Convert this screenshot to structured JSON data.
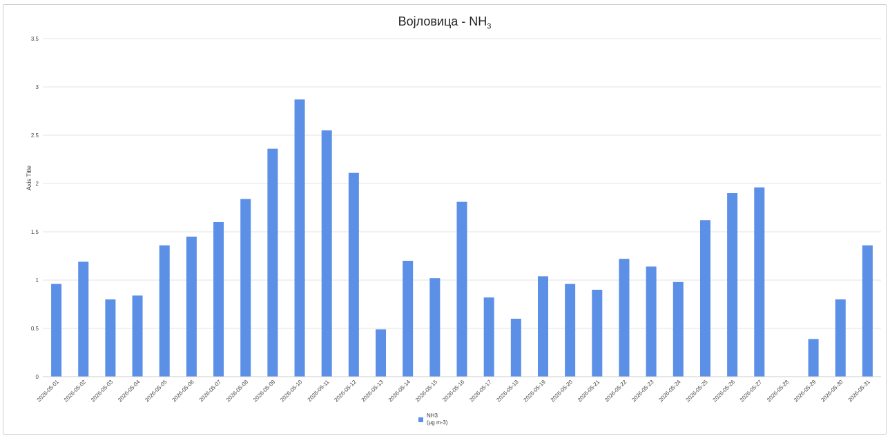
{
  "chart_data": {
    "type": "bar",
    "title_main": "Војловица - NH",
    "title_sub": "3",
    "ylabel": "Axis Title",
    "xlabel": "",
    "ylim": [
      0,
      3.5
    ],
    "yticks": [
      "0",
      "0.5",
      "1",
      "1.5",
      "2",
      "2.5",
      "3",
      "3.5"
    ],
    "grid": true,
    "legend_position": "bottom",
    "categories": [
      "2026-05-01",
      "2026-05-02",
      "2026-05-03",
      "2026-05-04",
      "2026-05-05",
      "2026-05-06",
      "2026-05-07",
      "2026-05-08",
      "2026-05-09",
      "2026-05-10",
      "2026-05-11",
      "2026-05-12",
      "2026-05-13",
      "2026-05-14",
      "2026-05-15",
      "2026-05-16",
      "2026-05-17",
      "2026-05-18",
      "2026-05-19",
      "2026-05-20",
      "2026-05-21",
      "2026-05-22",
      "2026-05-23",
      "2026-05-24",
      "2026-05-25",
      "2026-05-26",
      "2026-05-27",
      "2026-05-28",
      "2026-05-29",
      "2026-05-30",
      "2026-05-31"
    ],
    "series": [
      {
        "name": "NH3",
        "name_unit": "(μg m-3)",
        "color": "#5c8fe6",
        "values": [
          0.96,
          1.19,
          0.8,
          0.84,
          1.36,
          1.45,
          1.6,
          1.84,
          2.36,
          2.87,
          2.55,
          2.11,
          0.49,
          1.2,
          1.02,
          1.81,
          0.82,
          0.6,
          1.04,
          0.96,
          0.9,
          1.22,
          1.14,
          0.98,
          1.62,
          1.9,
          1.96,
          null,
          0.39,
          0.8,
          1.36
        ]
      }
    ]
  }
}
